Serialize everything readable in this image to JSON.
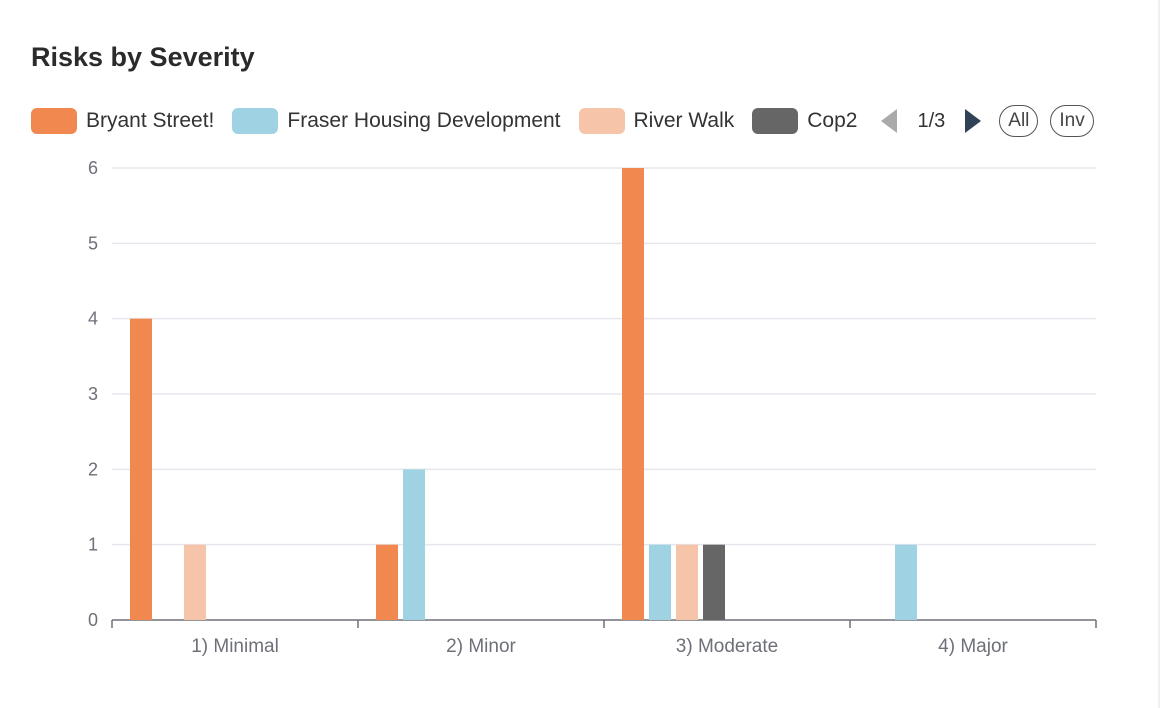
{
  "chart_data": {
    "type": "bar",
    "title": "Risks by Severity",
    "categories": [
      "1) Minimal",
      "2) Minor",
      "3) Moderate",
      "4) Major"
    ],
    "series": [
      {
        "name": "Bryant Street!",
        "color": "#f0884f",
        "values": [
          4,
          1,
          6,
          0
        ]
      },
      {
        "name": "Fraser Housing Development",
        "color": "#9fd3e3",
        "values": [
          0,
          2,
          1,
          1
        ]
      },
      {
        "name": "River Walk",
        "color": "#f6c4a8",
        "values": [
          1,
          0,
          1,
          0
        ]
      },
      {
        "name": "Cop2",
        "color": "#666666",
        "values": [
          0,
          0,
          1,
          0
        ]
      }
    ],
    "ylim": [
      0,
      6
    ],
    "yticks": [
      0,
      1,
      2,
      3,
      4,
      5,
      6
    ],
    "grid": true,
    "legend_position": "top",
    "xlabel": "",
    "ylabel": ""
  },
  "legend_pager": {
    "page_text": "1/3",
    "all_label": "All",
    "inv_label": "Inv"
  }
}
